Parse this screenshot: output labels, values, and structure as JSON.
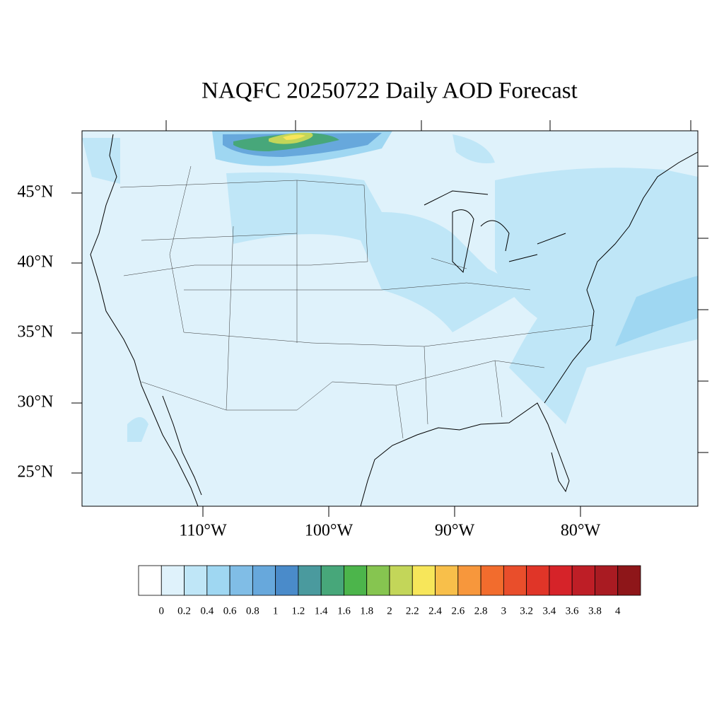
{
  "title": "NAQFC 20250722 Daily AOD Forecast",
  "map": {
    "lat_ticks": [
      {
        "value": 45,
        "label": "45°N"
      },
      {
        "value": 40,
        "label": "40°N"
      },
      {
        "value": 35,
        "label": "35°N"
      },
      {
        "value": 30,
        "label": "30°N"
      },
      {
        "value": 25,
        "label": "25°N"
      }
    ],
    "lon_ticks": [
      {
        "value": -110,
        "label": "110°W"
      },
      {
        "value": -100,
        "label": "100°W"
      },
      {
        "value": -90,
        "label": "90°W"
      },
      {
        "value": -80,
        "label": "80°W"
      }
    ]
  },
  "colorbar": {
    "levels": [
      0,
      0.2,
      0.4,
      0.6,
      0.8,
      1,
      1.2,
      1.4,
      1.6,
      1.8,
      2,
      2.2,
      2.4,
      2.6,
      2.8,
      3,
      3.2,
      3.4,
      3.6,
      3.8,
      4
    ],
    "colors": [
      "#ffffff",
      "#dff2fb",
      "#bfe6f7",
      "#9fd7f2",
      "#80bde6",
      "#67a8dc",
      "#4a8bca",
      "#4a9a9e",
      "#47a77a",
      "#4cb54b",
      "#86c550",
      "#c3d659",
      "#f7e65a",
      "#f8bf4a",
      "#f7973c",
      "#f26c2d",
      "#e94e2b",
      "#e03528",
      "#d62329",
      "#be1e26",
      "#a91b22",
      "#8e1619"
    ]
  }
}
